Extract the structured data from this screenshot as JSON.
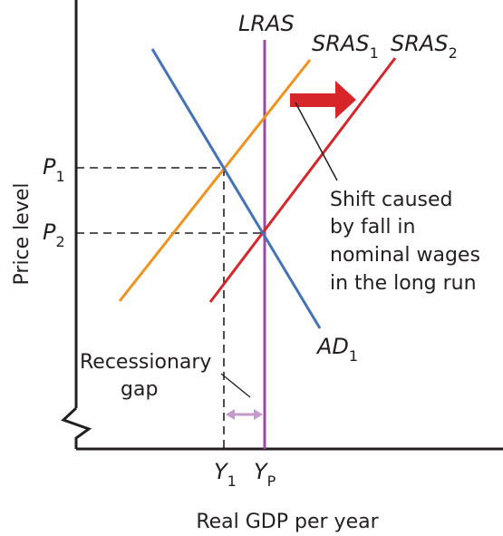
{
  "axes": {
    "y_label": "Price level",
    "x_label": "Real GDP per year"
  },
  "curves": {
    "lras": {
      "label": "LRAS",
      "color": "#9b4aa6"
    },
    "sras1": {
      "label": "SRAS",
      "sub": "1",
      "color": "#f0921e"
    },
    "sras2": {
      "label": "SRAS",
      "sub": "2",
      "color": "#d6262a"
    },
    "ad1": {
      "label": "AD",
      "sub": "1",
      "color": "#4472b8"
    }
  },
  "price_levels": {
    "p1": {
      "label": "P",
      "sub": "1"
    },
    "p2": {
      "label": "P",
      "sub": "2"
    }
  },
  "output_levels": {
    "y1": {
      "label": "Y",
      "sub": "1"
    },
    "yp": {
      "label": "Y",
      "sub": "P"
    }
  },
  "annotations": {
    "shift_lines": [
      "Shift caused",
      "by fall in",
      "nominal wages",
      "in the long run"
    ],
    "gap_lines": [
      "Recessionary",
      "gap"
    ]
  },
  "colors": {
    "axis": "#231f20",
    "gap_arrow": "#c39ac9",
    "shift_arrow": "#d6262a"
  },
  "icons": {
    "shift_arrow": "right-arrow-icon",
    "gap_arrow": "double-headed-arrow-icon",
    "axis_break": "axis-break-icon"
  }
}
